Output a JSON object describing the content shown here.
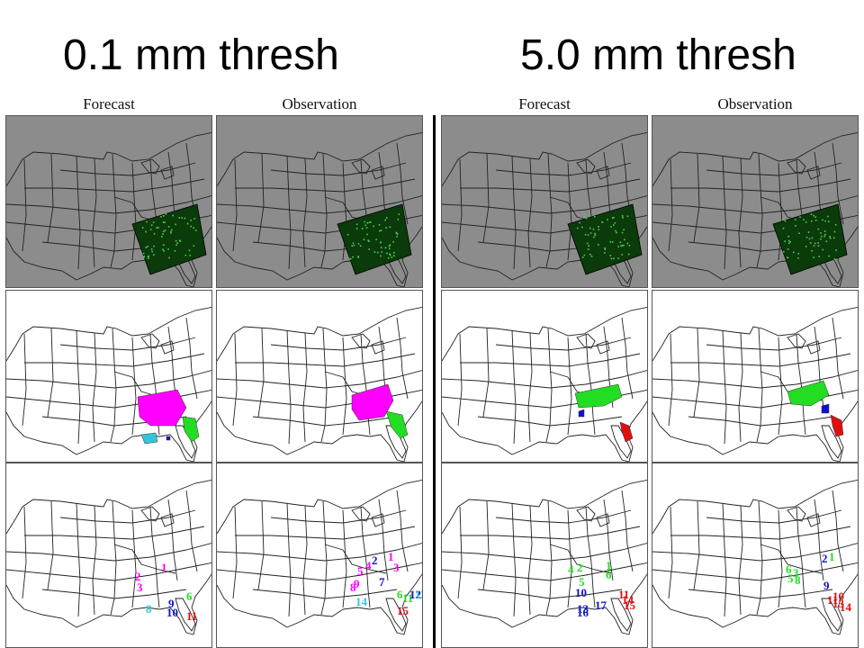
{
  "titles": {
    "left": "0.1 mm thresh",
    "right": "5.0 mm thresh"
  },
  "columns": [
    "Forecast",
    "Observation",
    "Forecast",
    "Observation"
  ],
  "colors": {
    "background_gray": "#8c8c8c",
    "field_green": "#0b3a0b",
    "object_magenta": "#ff00ff",
    "object_green": "#22dd22",
    "object_cyan": "#33c6d8",
    "object_blue": "#1010d0",
    "object_red": "#e01010"
  },
  "labels": {
    "p0": [
      {
        "t": "1",
        "c": "magenta"
      },
      {
        "t": "2",
        "c": "magenta"
      },
      {
        "t": "3",
        "c": "magenta"
      },
      {
        "t": "9",
        "c": "blue"
      },
      {
        "t": "10",
        "c": "blue"
      },
      {
        "t": "8",
        "c": "cyan"
      },
      {
        "t": "6",
        "c": "green"
      },
      {
        "t": "11",
        "c": "red"
      }
    ],
    "p1": [
      {
        "t": "1",
        "c": "magenta"
      },
      {
        "t": "2",
        "c": "blue"
      },
      {
        "t": "3",
        "c": "magenta"
      },
      {
        "t": "4",
        "c": "magenta"
      },
      {
        "t": "5",
        "c": "magenta"
      },
      {
        "t": "7",
        "c": "blue"
      },
      {
        "t": "8",
        "c": "magenta"
      },
      {
        "t": "9",
        "c": "magenta"
      },
      {
        "t": "14",
        "c": "cyan"
      },
      {
        "t": "6",
        "c": "green"
      },
      {
        "t": "11",
        "c": "green"
      },
      {
        "t": "12",
        "c": "blue"
      },
      {
        "t": "13",
        "c": "cyan"
      },
      {
        "t": "15",
        "c": "red"
      }
    ],
    "p2": [
      {
        "t": "2",
        "c": "green"
      },
      {
        "t": "4",
        "c": "green"
      },
      {
        "t": "1",
        "c": "green"
      },
      {
        "t": "5",
        "c": "green"
      },
      {
        "t": "6",
        "c": "green"
      },
      {
        "t": "10",
        "c": "blue"
      },
      {
        "t": "13",
        "c": "blue"
      },
      {
        "t": "16",
        "c": "blue"
      },
      {
        "t": "17",
        "c": "blue"
      },
      {
        "t": "11",
        "c": "red"
      },
      {
        "t": "14",
        "c": "red"
      },
      {
        "t": "15",
        "c": "red"
      }
    ],
    "p3": [
      {
        "t": "6",
        "c": "green"
      },
      {
        "t": "3",
        "c": "green"
      },
      {
        "t": "5",
        "c": "green"
      },
      {
        "t": "8",
        "c": "green"
      },
      {
        "t": "2",
        "c": "blue"
      },
      {
        "t": "1",
        "c": "green"
      },
      {
        "t": "9",
        "c": "blue"
      },
      {
        "t": "10",
        "c": "red"
      },
      {
        "t": "11",
        "c": "red"
      },
      {
        "t": "13",
        "c": "red"
      },
      {
        "t": "14",
        "c": "red"
      }
    ]
  }
}
